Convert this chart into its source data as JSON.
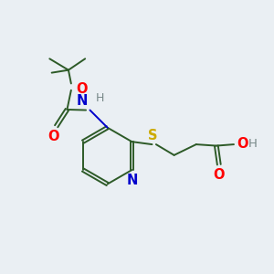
{
  "background_color": "#eaeff3",
  "bond_color": "#2d5a27",
  "atom_colors": {
    "O": "#ff0000",
    "N": "#0000cc",
    "S": "#ccaa00",
    "H": "#778888",
    "C": "#2d5a27"
  },
  "figsize": [
    3.0,
    3.0
  ],
  "dpi": 100
}
